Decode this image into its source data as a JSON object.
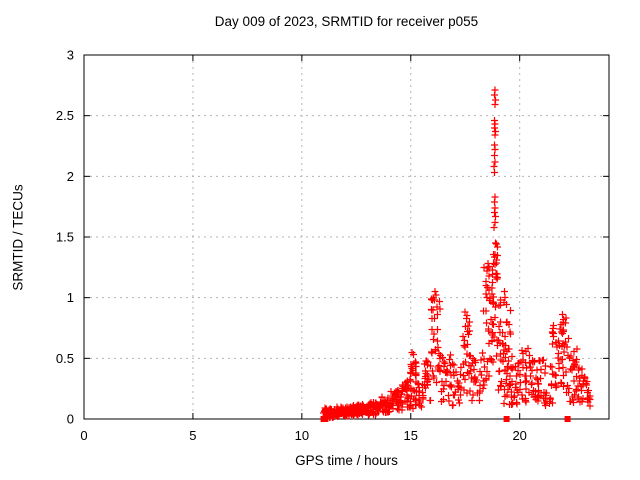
{
  "chart_data": {
    "type": "scatter",
    "title": "Day 009 of 2023, SRMTID for receiver p055",
    "xlabel": "GPS time / hours",
    "ylabel": "SRMTID / TECUs",
    "xlim": [
      0,
      24.1
    ],
    "ylim": [
      0,
      3
    ],
    "xticks": [
      0,
      5,
      10,
      15,
      20
    ],
    "yticks": [
      0,
      0.5,
      1,
      1.5,
      2,
      2.5,
      3
    ],
    "grid": true,
    "legend": "none",
    "marker": "plus",
    "marker_color": "#ff0000",
    "series_name": "SRMTID",
    "seed": 42,
    "points": [
      [
        18.83,
        1.58
      ],
      [
        18.86,
        1.62
      ],
      [
        18.88,
        1.67
      ],
      [
        18.84,
        1.7
      ],
      [
        18.87,
        1.74
      ],
      [
        18.85,
        1.79
      ],
      [
        18.86,
        1.83
      ],
      [
        18.85,
        2.03
      ],
      [
        18.83,
        2.08
      ],
      [
        18.86,
        2.12
      ],
      [
        18.84,
        2.17
      ],
      [
        18.87,
        2.22
      ],
      [
        18.85,
        2.26
      ],
      [
        18.86,
        2.34
      ],
      [
        18.88,
        2.37
      ],
      [
        18.84,
        2.4
      ],
      [
        18.86,
        2.43
      ],
      [
        18.85,
        2.46
      ],
      [
        18.86,
        2.59
      ],
      [
        18.88,
        2.63
      ],
      [
        18.85,
        2.67
      ],
      [
        18.87,
        2.71
      ],
      [
        16.1,
        0.98
      ],
      [
        16.12,
        1.05
      ],
      [
        16.15,
        1.02
      ],
      [
        17.5,
        0.88
      ],
      [
        17.55,
        0.83
      ],
      [
        19.28,
        0.96
      ],
      [
        19.3,
        1.05
      ],
      [
        19.33,
        1.0
      ],
      [
        21.9,
        0.78
      ],
      [
        21.97,
        0.86
      ],
      [
        22.02,
        0.82
      ],
      [
        15.05,
        0.55
      ],
      [
        15.12,
        0.53
      ],
      [
        18.45,
        1.1
      ],
      [
        18.5,
        1.22
      ],
      [
        18.55,
        1.28
      ],
      [
        18.6,
        1.18
      ],
      [
        11.02,
        0.02
      ],
      [
        14.8,
        0.28
      ]
    ],
    "clusters": [
      [
        11.0,
        11.5,
        0.01,
        0.09,
        40
      ],
      [
        11.5,
        12.0,
        0.02,
        0.1,
        40
      ],
      [
        12.0,
        12.5,
        0.02,
        0.11,
        40
      ],
      [
        12.5,
        13.0,
        0.03,
        0.12,
        40
      ],
      [
        13.0,
        13.6,
        0.03,
        0.14,
        45
      ],
      [
        13.6,
        14.1,
        0.05,
        0.18,
        40
      ],
      [
        14.1,
        14.6,
        0.07,
        0.24,
        38
      ],
      [
        14.6,
        15.0,
        0.1,
        0.34,
        26
      ],
      [
        14.95,
        15.25,
        0.3,
        0.56,
        16
      ],
      [
        15.0,
        15.6,
        0.08,
        0.32,
        26
      ],
      [
        15.55,
        15.95,
        0.12,
        0.48,
        22
      ],
      [
        15.95,
        16.35,
        0.25,
        1.02,
        32
      ],
      [
        16.3,
        16.85,
        0.13,
        0.55,
        26
      ],
      [
        16.8,
        17.35,
        0.1,
        0.46,
        24
      ],
      [
        17.35,
        17.75,
        0.2,
        0.86,
        26
      ],
      [
        17.7,
        18.25,
        0.12,
        0.5,
        24
      ],
      [
        18.25,
        18.65,
        0.25,
        1.28,
        28
      ],
      [
        18.68,
        19.0,
        0.45,
        1.45,
        42
      ],
      [
        19.0,
        19.25,
        0.22,
        1.0,
        20
      ],
      [
        19.25,
        19.6,
        0.08,
        0.95,
        32
      ],
      [
        19.6,
        20.05,
        0.1,
        0.52,
        26
      ],
      [
        20.05,
        20.6,
        0.12,
        0.58,
        30
      ],
      [
        20.6,
        21.1,
        0.12,
        0.5,
        26
      ],
      [
        21.1,
        21.5,
        0.1,
        0.45,
        20
      ],
      [
        21.5,
        21.95,
        0.18,
        0.78,
        28
      ],
      [
        21.95,
        22.25,
        0.2,
        0.84,
        22
      ],
      [
        22.25,
        22.65,
        0.12,
        0.58,
        24
      ],
      [
        22.65,
        23.0,
        0.12,
        0.48,
        20
      ],
      [
        23.0,
        23.25,
        0.1,
        0.32,
        12
      ]
    ],
    "zero_markers": [
      [
        11.0,
        0
      ],
      [
        11.08,
        0
      ],
      [
        19.4,
        0
      ],
      [
        22.2,
        0
      ]
    ]
  }
}
